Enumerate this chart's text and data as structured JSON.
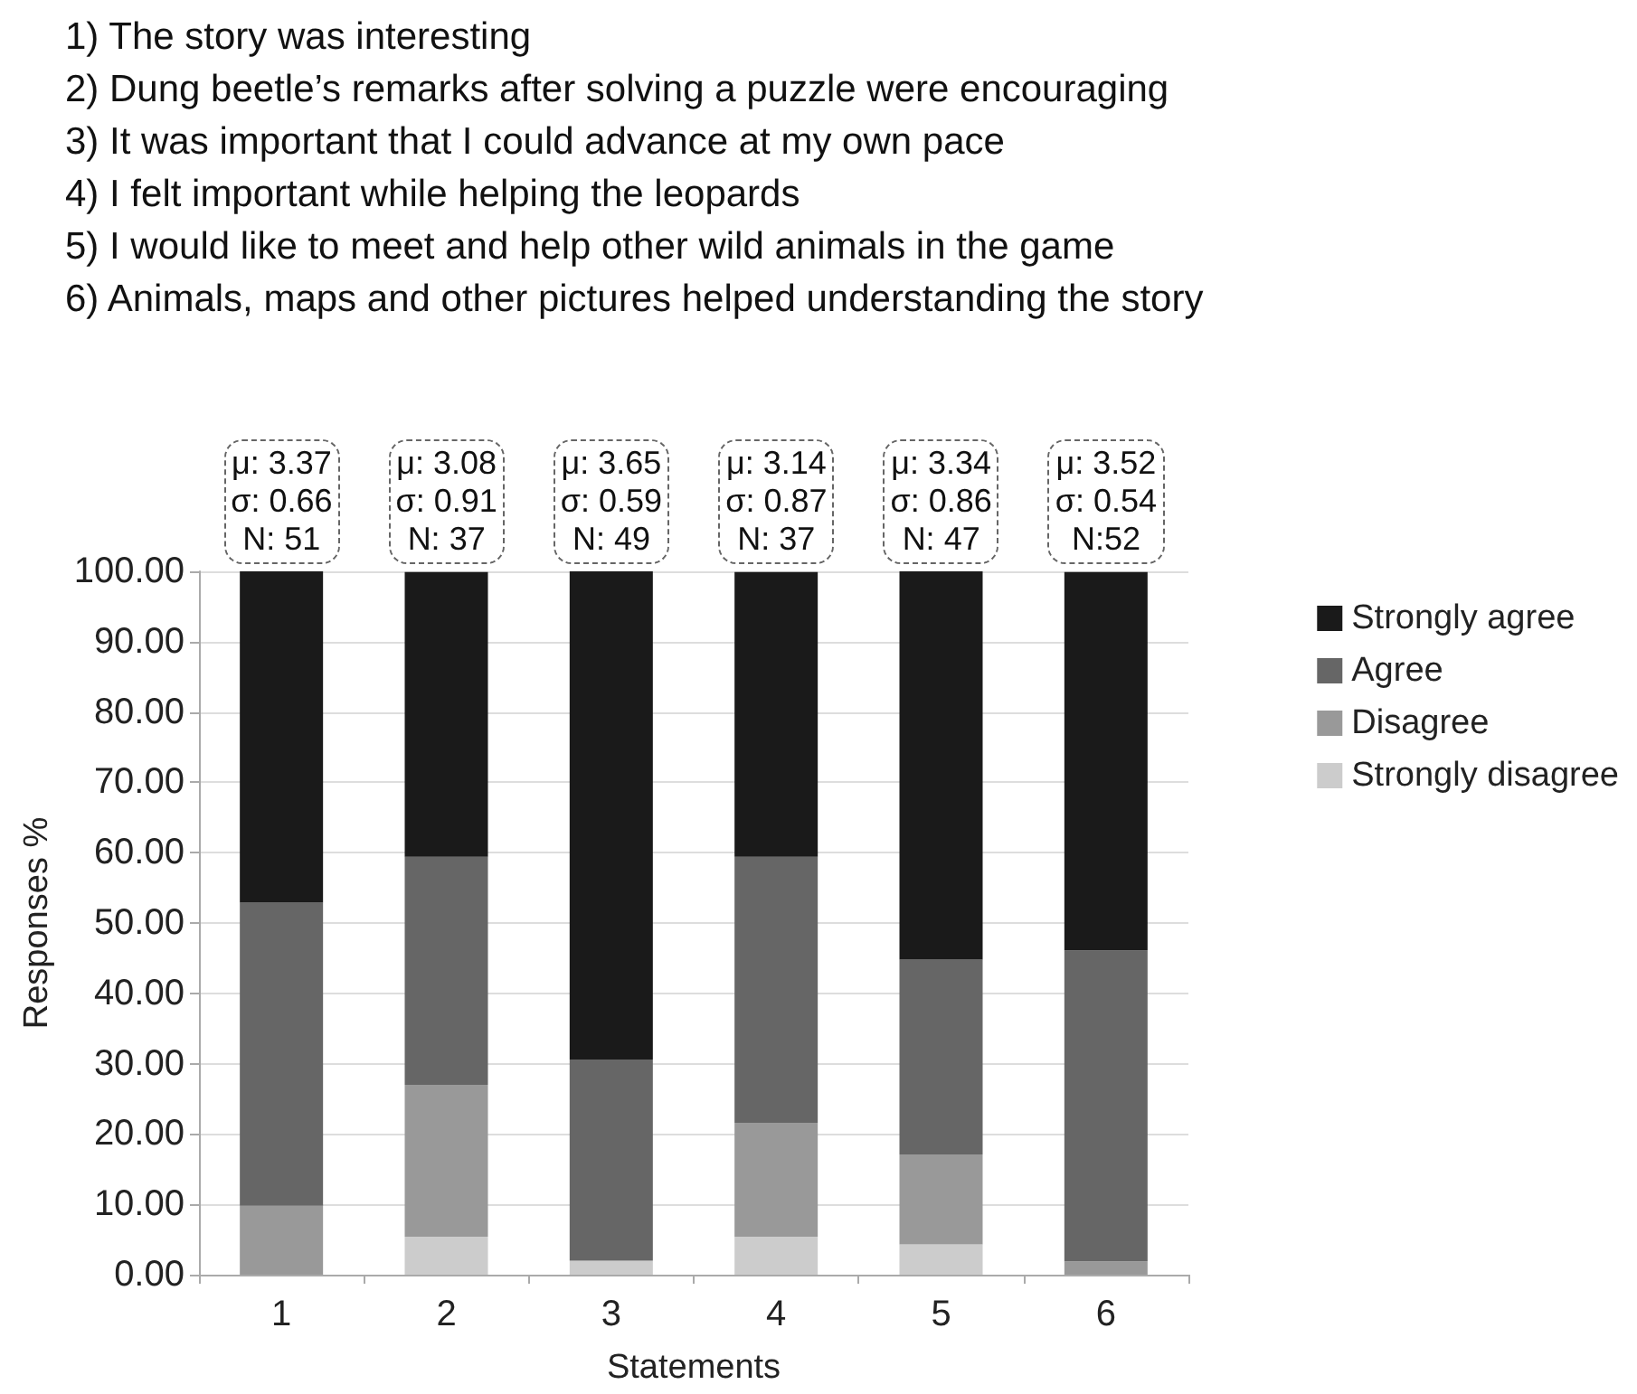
{
  "chart_data": {
    "type": "bar",
    "stacked": true,
    "xlabel": "Statements",
    "ylabel": "Responses %",
    "categories": [
      "1",
      "2",
      "3",
      "4",
      "5",
      "6"
    ],
    "series": [
      {
        "name": "Strongly disagree",
        "color": "#cccccc",
        "values": [
          0,
          5.4,
          2.0,
          5.4,
          4.3,
          0
        ]
      },
      {
        "name": "Disagree",
        "color": "#999999",
        "values": [
          9.8,
          21.6,
          0,
          16.2,
          12.8,
          1.9
        ]
      },
      {
        "name": "Agree",
        "color": "#666666",
        "values": [
          43.1,
          32.4,
          28.6,
          37.8,
          27.7,
          44.2
        ]
      },
      {
        "name": "Strongly agree",
        "color": "#1a1a1a",
        "values": [
          47.1,
          40.5,
          69.4,
          40.5,
          55.3,
          53.8
        ]
      }
    ],
    "ylim": [
      0,
      100
    ],
    "yticks": [
      {
        "value": 0,
        "label": "0.00"
      },
      {
        "value": 10,
        "label": "10.00"
      },
      {
        "value": 20,
        "label": "20.00"
      },
      {
        "value": 30,
        "label": "30.00"
      },
      {
        "value": 40,
        "label": "40.00"
      },
      {
        "value": 50,
        "label": "50.00"
      },
      {
        "value": 60,
        "label": "60.00"
      },
      {
        "value": 70,
        "label": "70.00"
      },
      {
        "value": 80,
        "label": "80.00"
      },
      {
        "value": 90,
        "label": "90.00"
      },
      {
        "value": 100,
        "label": "100.00"
      }
    ],
    "grid": "y",
    "legend": "right",
    "annotations": [
      "1) The story was interesting",
      "2) Dung beetle’s remarks after solving a puzzle were encouraging",
      "3) It was important that I could advance at my own pace",
      "4) I felt important while helping the leopards",
      "5) I would like to meet and help other wild animals in the game",
      "6) Animals, maps and other pictures helped understanding the story",
      "μ: 3.37\nσ: 0.66\nN: 51",
      "μ: 3.08\nσ: 0.91\nN: 37",
      "μ: 3.65\nσ: 0.59\nN: 49",
      "μ: 3.14\nσ: 0.87\nN: 37",
      "μ: 3.34\nσ: 0.86\nN: 47",
      "μ: 3.52\nσ: 0.54\nN:52"
    ]
  }
}
